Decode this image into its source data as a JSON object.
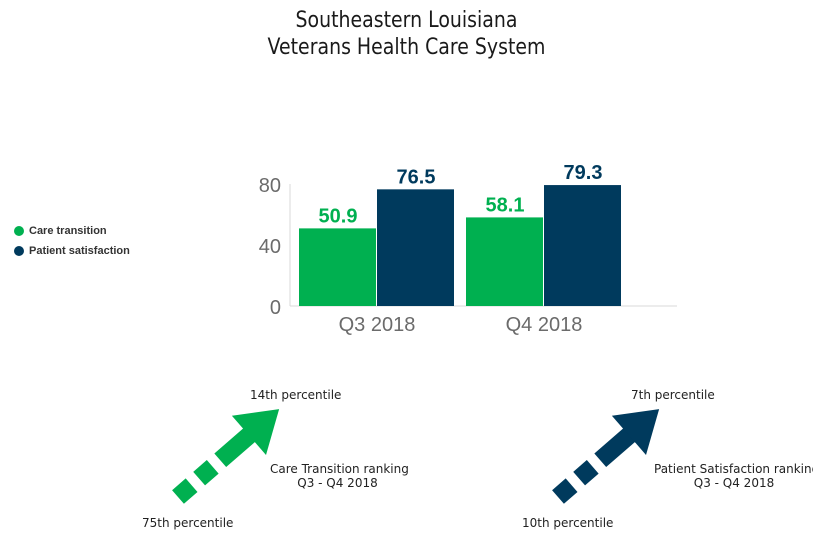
{
  "title": {
    "line1": "Southeastern Louisiana",
    "line2": "Veterans Health Care System"
  },
  "legend": [
    {
      "label": "Care transition",
      "color": "#00b050"
    },
    {
      "label": "Patient satisfaction",
      "color": "#003a5d"
    }
  ],
  "chart_data": {
    "type": "bar",
    "categories": [
      "Q3 2018",
      "Q4 2018"
    ],
    "series": [
      {
        "name": "Care transition",
        "values": [
          50.9,
          58.1
        ],
        "color": "#00b050"
      },
      {
        "name": "Patient satisfaction",
        "values": [
          76.5,
          79.3
        ],
        "color": "#003a5d"
      }
    ],
    "yticks": [
      0,
      40,
      80
    ],
    "ylim": [
      0,
      80
    ],
    "data_labels": true,
    "grid": false,
    "legend_position": "left"
  },
  "rankings": [
    {
      "color": "#00b050",
      "from_label": "75th percentile",
      "to_label": "14th percentile",
      "caption_line1": "Care Transition ranking",
      "caption_line2": "Q3 - Q4 2018"
    },
    {
      "color": "#003a5d",
      "from_label": "10th percentile",
      "to_label": "7th percentile",
      "caption_line1": "Patient Satisfaction ranking",
      "caption_line2": "Q3 - Q4 2018"
    }
  ]
}
